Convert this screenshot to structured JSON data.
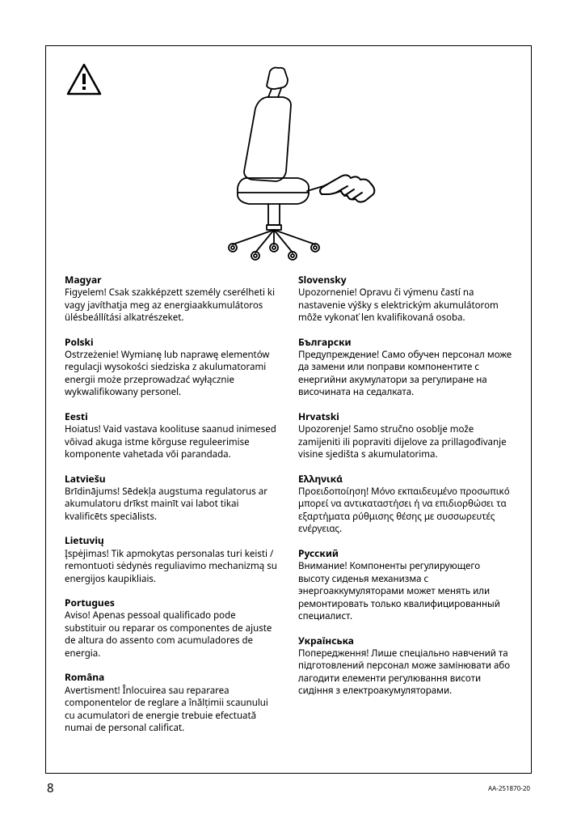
{
  "page_number": "8",
  "doc_id": "AA-251870-20",
  "columns": [
    [
      {
        "title": "Magyar",
        "body": "Figyelem! Csak szakképzett személy cserélheti ki vagy javíthatja meg az energiaakkumulátoros ülésbeállítási alkatrészeket."
      },
      {
        "title": "Polski",
        "body": "Ostrzeżenie! Wymianę lub naprawę elementów regulacji wysokości siedziska z akulumatorami energii może przeprowadzać wyłącznie wykwalifikowany personel."
      },
      {
        "title": "Eesti",
        "body": "Hoiatus! Vaid vastava koolituse saanud inimesed võivad akuga istme kõrguse reguleerimise komponente vahetada või parandada."
      },
      {
        "title": "Latviešu",
        "body": "Brīdinājums! Sēdekļa augstuma regulatorus ar akumulatoru drīkst mainīt vai labot tikai kvalificēts speciālists."
      },
      {
        "title": "Lietuvių",
        "body": "Įspėjimas! Tik apmokytas personalas turi keisti / remontuoti sėdynės reguliavimo mechanizmą su energijos kaupikliais."
      },
      {
        "title": "Portugues",
        "body": "Aviso! Apenas pessoal qualificado pode substituir ou reparar os componentes de ajuste de altura do assento com acumuladores de energia."
      },
      {
        "title": "Româna",
        "body": "Avertisment! Înlocuirea sau repararea componentelor de reglare a înălțimii scaunului cu acumulatori de energie trebuie efectuată numai de personal calificat."
      }
    ],
    [
      {
        "title": "Slovensky",
        "body": "Upozornenie! Opravu či výmenu častí na nastavenie výšky s elektrickým akumulátorom môže vykonať len kvalifikovaná osoba."
      },
      {
        "title": "Български",
        "body": "Предупреждение! Само обучен персонал може да замени или поправи компонентите с енергийни акумулатори за регулиране на височината на седалката."
      },
      {
        "title": "Hrvatski",
        "body": "Upozorenje! Samo stručno osoblje može zamijeniti ili popraviti dijelove za prillagođivanje visine sjedišta s akumulatorima."
      },
      {
        "title": "Ελληνικά",
        "body": "Προειδοποίηση! Μόνο εκπαιδευμένο προσωπικό μπορεί να αντικαταστήσει ή να επιδιορθώσει τα εξαρτήματα ρύθμισης θέσης με συσσωρευτές ενέργειας."
      },
      {
        "title": "Русский",
        "body": "Внимание! Компоненты регулирующего высоту сиденья механизма с энергоаккумуляторами может менять или ремонтировать только квалифицированный специалист."
      },
      {
        "title": "Українська",
        "body": "Попередження! Лише спеціально навчений та підготовлений персонал може замінювати або лагодити елементи регулювання висоти сидіння з електроакумуляторами."
      }
    ]
  ]
}
